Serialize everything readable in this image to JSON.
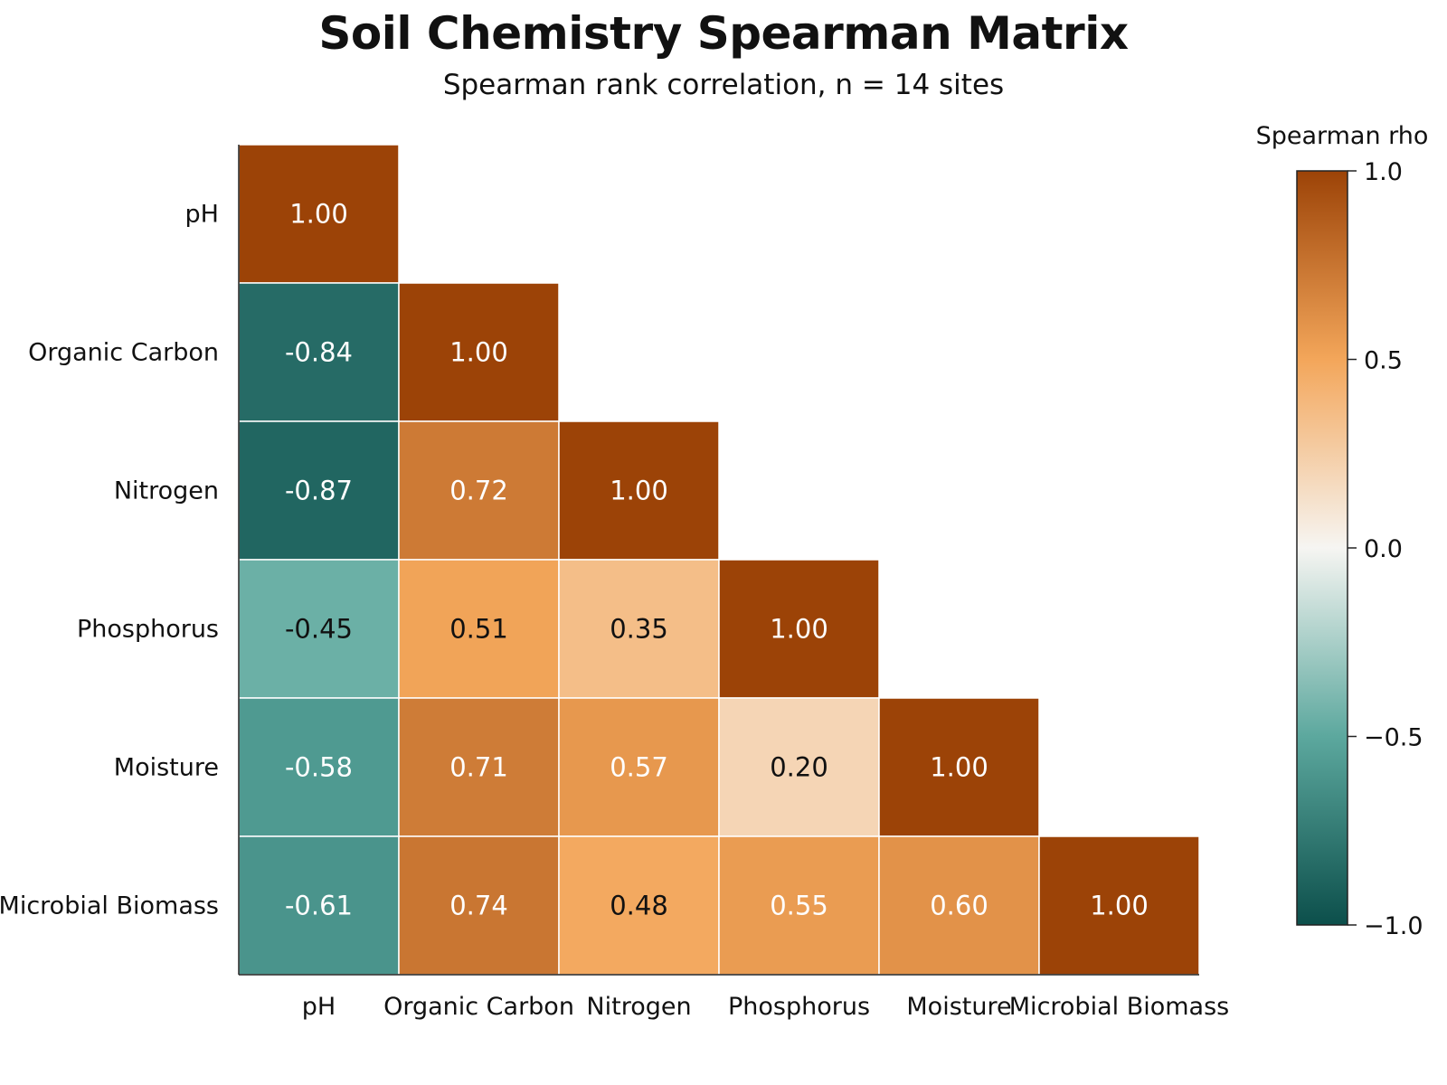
{
  "chart_data": {
    "type": "heatmap",
    "title": "Soil Chemistry Spearman Matrix",
    "subtitle": "Spearman rank correlation, n = 14 sites",
    "variables": [
      "pH",
      "Organic Carbon",
      "Nitrogen",
      "Phosphorus",
      "Moisture",
      "Microbial Biomass"
    ],
    "matrix": [
      [
        1.0,
        null,
        null,
        null,
        null,
        null
      ],
      [
        -0.84,
        1.0,
        null,
        null,
        null,
        null
      ],
      [
        -0.87,
        0.72,
        1.0,
        null,
        null,
        null
      ],
      [
        -0.45,
        0.51,
        0.35,
        1.0,
        null,
        null
      ],
      [
        -0.58,
        0.71,
        0.57,
        0.2,
        1.0,
        null
      ],
      [
        -0.61,
        0.74,
        0.48,
        0.55,
        0.6,
        1.0
      ]
    ],
    "value_format_decimals": 2,
    "masked": "upper triangle",
    "colorbar": {
      "title": "Spearman rho",
      "range": [
        -1.0,
        1.0
      ],
      "ticks": [
        1.0,
        0.5,
        0.0,
        -0.5,
        -1.0
      ],
      "tick_labels": [
        "1.0",
        "0.5",
        "0.0",
        "−0.5",
        "−1.0"
      ],
      "colors": [
        "#0c4f4b",
        "#5ca89e",
        "#f6f5f2",
        "#f3a65a",
        "#9c4307"
      ]
    }
  }
}
